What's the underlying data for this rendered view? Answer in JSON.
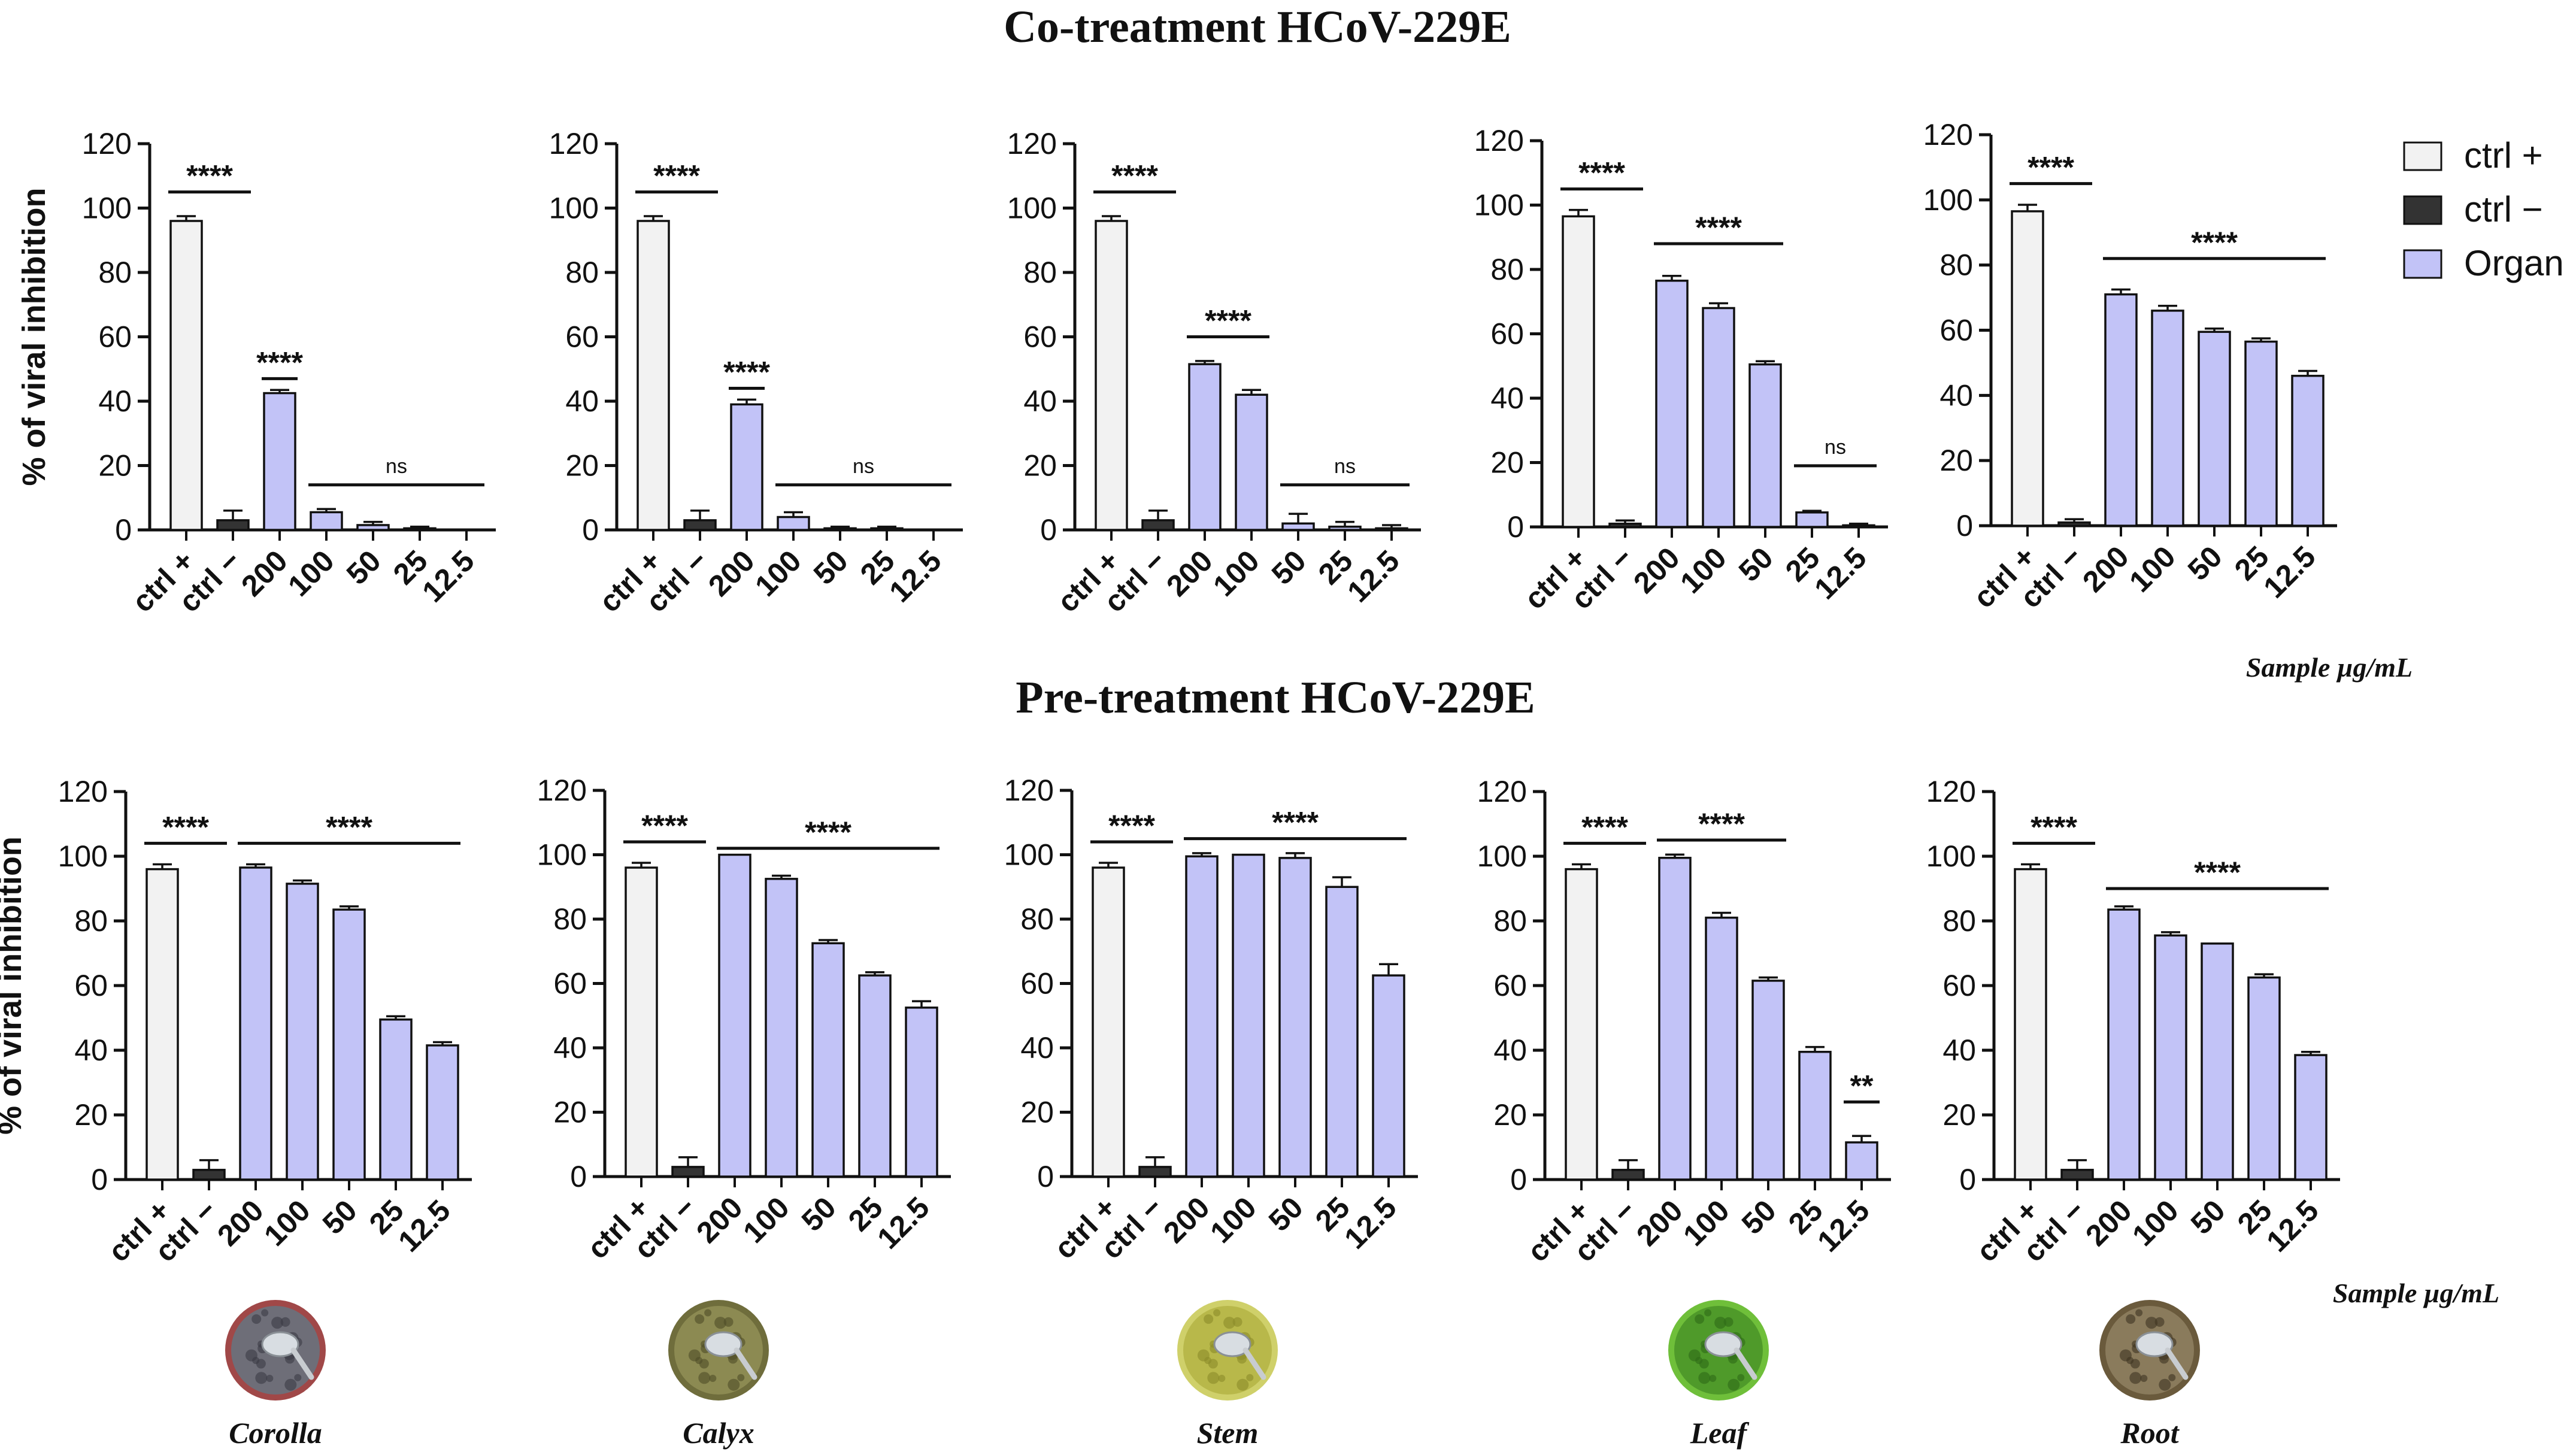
{
  "figure": {
    "row1_title": "Co-treatment HCoV-229E",
    "row2_title": "Pre-treatment HCoV-229E",
    "ylabel": "% of viral inhibition",
    "unit_label": "Sample µg/mL",
    "colors": {
      "ctrl_pos": "#f2f2f2",
      "ctrl_neg": "#333333",
      "organ": "#c2c3f7",
      "stroke": "#111111"
    }
  },
  "legend": {
    "items": [
      {
        "label": "ctrl +",
        "color": "#f2f2f2"
      },
      {
        "label": "ctrl −",
        "color": "#333333"
      },
      {
        "label": "Organ",
        "color": "#c2c3f7"
      }
    ]
  },
  "organs": [
    "Corolla",
    "Calyx",
    "Stem",
    "Leaf",
    "Root"
  ],
  "chart_data": [
    {
      "type": "bar",
      "row": "Co-treatment HCoV-229E",
      "organ": "Corolla",
      "categories": [
        "ctrl +",
        "ctrl −",
        "200",
        "100",
        "50",
        "25",
        "12.5"
      ],
      "values": [
        96,
        3,
        42.5,
        5.5,
        1.5,
        0.5,
        0
      ],
      "errors": [
        1.5,
        3,
        1,
        1,
        1,
        0.5,
        0
      ],
      "ylabel": "% of viral inhibition",
      "ylim": [
        0,
        120
      ],
      "yticks": [
        0,
        20,
        40,
        60,
        80,
        100,
        120
      ],
      "significance": [
        {
          "from": 0,
          "to": 1,
          "label": "****",
          "y": 105
        },
        {
          "from": 2,
          "to": 2,
          "label": "****",
          "y": 47
        },
        {
          "from": 3,
          "to": 6,
          "label": "ns",
          "y": 14
        }
      ]
    },
    {
      "type": "bar",
      "row": "Co-treatment HCoV-229E",
      "organ": "Calyx",
      "categories": [
        "ctrl +",
        "ctrl −",
        "200",
        "100",
        "50",
        "25",
        "12.5"
      ],
      "values": [
        96,
        3,
        39,
        4,
        0.5,
        0.5,
        0
      ],
      "errors": [
        1.5,
        3,
        1.5,
        1.5,
        0.5,
        0.5,
        0
      ],
      "ylabel": "",
      "ylim": [
        0,
        120
      ],
      "yticks": [
        0,
        20,
        40,
        60,
        80,
        100,
        120
      ],
      "significance": [
        {
          "from": 0,
          "to": 1,
          "label": "****",
          "y": 105
        },
        {
          "from": 2,
          "to": 2,
          "label": "****",
          "y": 44
        },
        {
          "from": 3,
          "to": 6,
          "label": "ns",
          "y": 14
        }
      ]
    },
    {
      "type": "bar",
      "row": "Co-treatment HCoV-229E",
      "organ": "Stem",
      "categories": [
        "ctrl +",
        "ctrl −",
        "200",
        "100",
        "50",
        "25",
        "12.5"
      ],
      "values": [
        96,
        3,
        51.5,
        42,
        2,
        1,
        0.5
      ],
      "errors": [
        1.5,
        3,
        1,
        1.5,
        3,
        1.5,
        1
      ],
      "ylabel": "",
      "ylim": [
        0,
        120
      ],
      "yticks": [
        0,
        20,
        40,
        60,
        80,
        100,
        120
      ],
      "significance": [
        {
          "from": 0,
          "to": 1,
          "label": "****",
          "y": 105
        },
        {
          "from": 2,
          "to": 3,
          "label": "****",
          "y": 60
        },
        {
          "from": 4,
          "to": 6,
          "label": "ns",
          "y": 14
        }
      ]
    },
    {
      "type": "bar",
      "row": "Co-treatment HCoV-229E",
      "organ": "Leaf",
      "categories": [
        "ctrl +",
        "ctrl −",
        "200",
        "100",
        "50",
        "25",
        "12.5"
      ],
      "values": [
        96.5,
        1,
        76.5,
        68,
        50.5,
        4.5,
        0.5
      ],
      "errors": [
        2,
        1,
        1.5,
        1.5,
        1,
        0.5,
        0.5
      ],
      "ylabel": "",
      "ylim": [
        0,
        120
      ],
      "yticks": [
        0,
        20,
        40,
        60,
        80,
        100,
        120
      ],
      "significance": [
        {
          "from": 0,
          "to": 1,
          "label": "****",
          "y": 105
        },
        {
          "from": 2,
          "to": 4,
          "label": "****",
          "y": 88
        },
        {
          "from": 5,
          "to": 6,
          "label": "ns",
          "y": 19
        }
      ]
    },
    {
      "type": "bar",
      "row": "Co-treatment HCoV-229E",
      "organ": "Root",
      "categories": [
        "ctrl +",
        "ctrl −",
        "200",
        "100",
        "50",
        "25",
        "12.5"
      ],
      "values": [
        96.5,
        1,
        71,
        66,
        59.5,
        56.5,
        46
      ],
      "errors": [
        2,
        1,
        1.5,
        1.5,
        1,
        1,
        1.5
      ],
      "ylabel": "",
      "ylim": [
        0,
        120
      ],
      "yticks": [
        0,
        20,
        40,
        60,
        80,
        100,
        120
      ],
      "significance": [
        {
          "from": 0,
          "to": 1,
          "label": "****",
          "y": 105
        },
        {
          "from": 2,
          "to": 6,
          "label": "****",
          "y": 82
        }
      ]
    },
    {
      "type": "bar",
      "row": "Pre-treatment HCoV-229E",
      "organ": "Corolla",
      "categories": [
        "ctrl +",
        "ctrl −",
        "200",
        "100",
        "50",
        "25",
        "12.5"
      ],
      "values": [
        96,
        3,
        96.5,
        91.5,
        83.5,
        49.5,
        41.5
      ],
      "errors": [
        1.5,
        3,
        1,
        1,
        1,
        1,
        1
      ],
      "ylabel": "% of viral inhibition",
      "ylim": [
        0,
        120
      ],
      "yticks": [
        0,
        20,
        40,
        60,
        80,
        100,
        120
      ],
      "significance": [
        {
          "from": 0,
          "to": 1,
          "label": "****",
          "y": 104
        },
        {
          "from": 2,
          "to": 6,
          "label": "****",
          "y": 104
        }
      ]
    },
    {
      "type": "bar",
      "row": "Pre-treatment HCoV-229E",
      "organ": "Calyx",
      "categories": [
        "ctrl +",
        "ctrl −",
        "200",
        "100",
        "50",
        "25",
        "12.5"
      ],
      "values": [
        96,
        3,
        100,
        92.5,
        72.5,
        62.5,
        52.5
      ],
      "errors": [
        1.5,
        3,
        0,
        1,
        1,
        1,
        2
      ],
      "ylabel": "",
      "ylim": [
        0,
        120
      ],
      "yticks": [
        0,
        20,
        40,
        60,
        80,
        100,
        120
      ],
      "significance": [
        {
          "from": 0,
          "to": 1,
          "label": "****",
          "y": 104
        },
        {
          "from": 2,
          "to": 6,
          "label": "****",
          "y": 102
        }
      ]
    },
    {
      "type": "bar",
      "row": "Pre-treatment HCoV-229E",
      "organ": "Stem",
      "categories": [
        "ctrl +",
        "ctrl −",
        "200",
        "100",
        "50",
        "25",
        "12.5"
      ],
      "values": [
        96,
        3,
        99.5,
        100,
        99,
        90,
        62.5
      ],
      "errors": [
        1.5,
        3,
        1,
        0,
        1.5,
        3,
        3.5
      ],
      "ylabel": "",
      "ylim": [
        0,
        120
      ],
      "yticks": [
        0,
        20,
        40,
        60,
        80,
        100,
        120
      ],
      "significance": [
        {
          "from": 0,
          "to": 1,
          "label": "****",
          "y": 104
        },
        {
          "from": 2,
          "to": 6,
          "label": "****",
          "y": 105
        }
      ]
    },
    {
      "type": "bar",
      "row": "Pre-treatment HCoV-229E",
      "organ": "Leaf",
      "categories": [
        "ctrl +",
        "ctrl −",
        "200",
        "100",
        "50",
        "25",
        "12.5"
      ],
      "values": [
        96,
        3,
        99.5,
        81,
        61.5,
        39.5,
        11.5
      ],
      "errors": [
        1.5,
        3,
        1,
        1.5,
        1,
        1.5,
        2
      ],
      "ylabel": "",
      "ylim": [
        0,
        120
      ],
      "yticks": [
        0,
        20,
        40,
        60,
        80,
        100,
        120
      ],
      "significance": [
        {
          "from": 0,
          "to": 1,
          "label": "****",
          "y": 104
        },
        {
          "from": 2,
          "to": 4,
          "label": "****",
          "y": 105
        },
        {
          "from": 6,
          "to": 6,
          "label": "**",
          "y": 24
        }
      ]
    },
    {
      "type": "bar",
      "row": "Pre-treatment HCoV-229E",
      "organ": "Root",
      "categories": [
        "ctrl +",
        "ctrl −",
        "200",
        "100",
        "50",
        "25",
        "12.5"
      ],
      "values": [
        96,
        3,
        83.5,
        75.5,
        73,
        62.5,
        38.5
      ],
      "errors": [
        1.5,
        3,
        1,
        1,
        0,
        1,
        1
      ],
      "ylabel": "",
      "ylim": [
        0,
        120
      ],
      "yticks": [
        0,
        20,
        40,
        60,
        80,
        100,
        120
      ],
      "significance": [
        {
          "from": 0,
          "to": 1,
          "label": "****",
          "y": 104
        },
        {
          "from": 2,
          "to": 6,
          "label": "****",
          "y": 90
        }
      ]
    }
  ]
}
